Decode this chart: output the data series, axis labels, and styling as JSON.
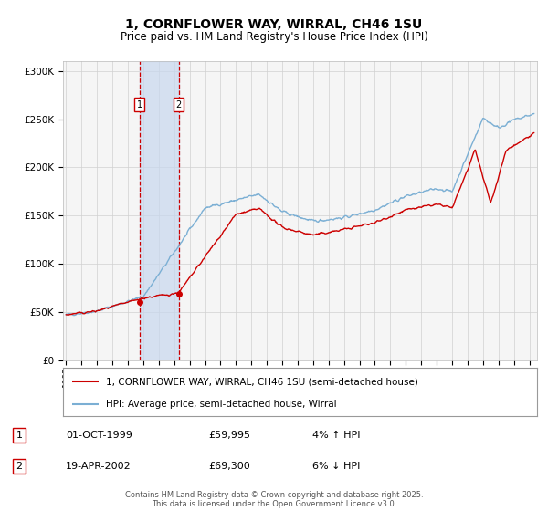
{
  "title": "1, CORNFLOWER WAY, WIRRAL, CH46 1SU",
  "subtitle": "Price paid vs. HM Land Registry's House Price Index (HPI)",
  "title_fontsize": 10,
  "subtitle_fontsize": 8.5,
  "legend_line1": "1, CORNFLOWER WAY, WIRRAL, CH46 1SU (semi-detached house)",
  "legend_line2": "HPI: Average price, semi-detached house, Wirral",
  "line_color_red": "#cc0000",
  "line_color_blue": "#7bafd4",
  "marker_color_red": "#cc0000",
  "sale1_date": "01-OCT-1999",
  "sale1_price": "£59,995",
  "sale1_hpi": "4% ↑ HPI",
  "sale1_year": 1999.75,
  "sale1_value": 59995,
  "sale2_date": "19-APR-2002",
  "sale2_price": "£69,300",
  "sale2_hpi": "6% ↓ HPI",
  "sale2_year": 2002.3,
  "sale2_value": 69300,
  "ylim_min": 0,
  "ylim_max": 310000,
  "xlim_min": 1994.8,
  "xlim_max": 2025.5,
  "footer": "Contains HM Land Registry data © Crown copyright and database right 2025.\nThis data is licensed under the Open Government Licence v3.0.",
  "background_color": "#ffffff",
  "plot_bg_color": "#f5f5f5",
  "grid_color": "#d0d0d0",
  "shaded_region_color": "#c8d8ee",
  "annotation_box_color": "#ffffff",
  "annotation_border_color": "#cc0000"
}
